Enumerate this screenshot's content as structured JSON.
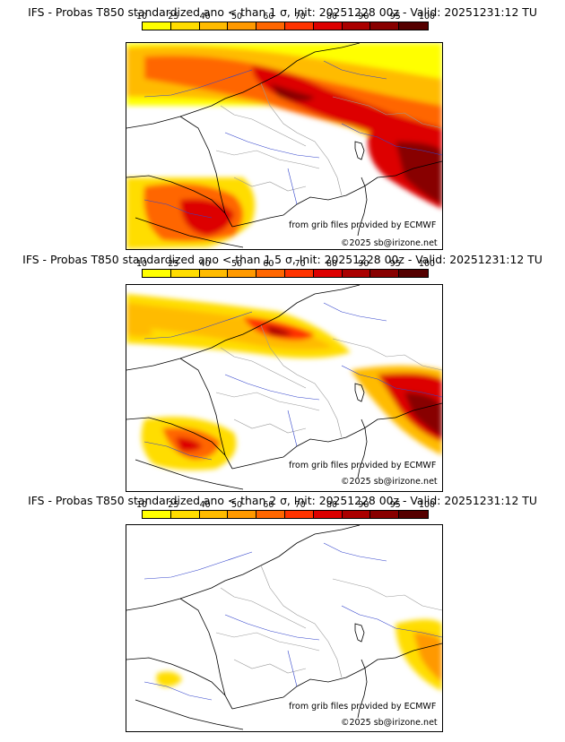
{
  "colorbar": {
    "ticks": [
      "10",
      "25",
      "40",
      "50",
      "60",
      "70",
      "80",
      "90",
      "95",
      "100"
    ],
    "colors": [
      "#ffff00",
      "#ffdd00",
      "#ffbb00",
      "#ff9900",
      "#ff6600",
      "#ff3300",
      "#dd0000",
      "#aa0000",
      "#880000",
      "#550000"
    ]
  },
  "panels": [
    {
      "title": "IFS - Probas T850  standardized ano < than 1 σ, Init: 20251228 00z - Valid: 20251231:12 TU",
      "credit": "from grib files provided by ECMWF",
      "copyright": "©2025 sb@irizone.net"
    },
    {
      "title": "IFS - Probas T850  standardized ano < than 1.5 σ, Init: 20251228 00z - Valid: 20251231:12 TU",
      "credit": "from grib files provided by ECMWF",
      "copyright": "©2025 sb@irizone.net"
    },
    {
      "title": "IFS - Probas T850  standardized ano < than 2 σ, Init: 20251228 00z - Valid: 20251231:12 TU",
      "credit": "from grib files provided by ECMWF",
      "copyright": "©2025 sb@irizone.net"
    }
  ]
}
